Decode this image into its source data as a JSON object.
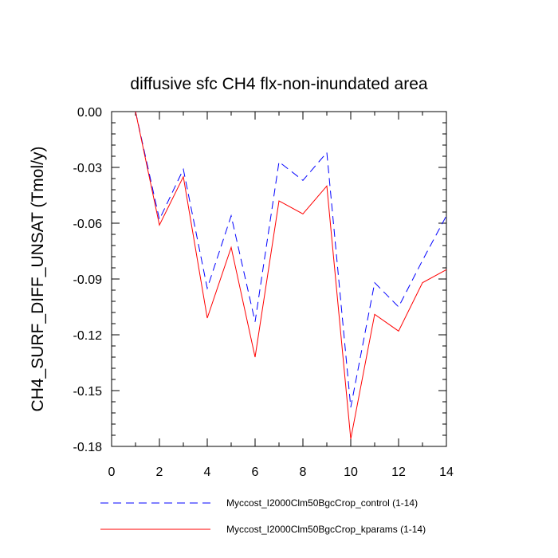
{
  "chart_data": {
    "type": "line",
    "title": "diffusive sfc CH4 flx-non-inundated area",
    "xlabel": "",
    "ylabel": "CH4_SURF_DIFF_UNSAT  (Tmol/y)",
    "xlim": [
      0,
      14
    ],
    "ylim": [
      -0.18,
      0.0
    ],
    "x_ticks": [
      0,
      2,
      4,
      6,
      8,
      10,
      12,
      14
    ],
    "x_tick_labels": [
      "0",
      "2",
      "4",
      "6",
      "8",
      "10",
      "12",
      "14"
    ],
    "y_ticks": [
      0.0,
      -0.03,
      -0.06,
      -0.09,
      -0.12,
      -0.15,
      -0.18
    ],
    "y_tick_labels": [
      "0.00",
      "-0.03",
      "-0.06",
      "-0.09",
      "-0.12",
      "-0.15",
      "-0.18"
    ],
    "grid": false,
    "legend_position": "bottom",
    "series": [
      {
        "name": "Myccost_I2000Clm50BgcCrop_control (1-14)",
        "color": "#0000ff",
        "style": "dashed",
        "x": [
          1,
          2,
          3,
          4,
          5,
          6,
          7,
          8,
          9,
          10,
          11,
          12,
          13,
          14
        ],
        "values": [
          0.0,
          -0.058,
          -0.031,
          -0.095,
          -0.056,
          -0.113,
          -0.027,
          -0.037,
          -0.022,
          -0.159,
          -0.092,
          -0.105,
          -0.08,
          -0.056
        ]
      },
      {
        "name": "Myccost_I2000Clm50BgcCrop_kparams (1-14)",
        "color": "#ff0000",
        "style": "solid",
        "x": [
          1,
          2,
          3,
          4,
          5,
          6,
          7,
          8,
          9,
          10,
          11,
          12,
          13,
          14
        ],
        "values": [
          0.0,
          -0.061,
          -0.035,
          -0.111,
          -0.073,
          -0.132,
          -0.048,
          -0.055,
          -0.04,
          -0.176,
          -0.109,
          -0.118,
          -0.092,
          -0.085
        ]
      }
    ]
  }
}
